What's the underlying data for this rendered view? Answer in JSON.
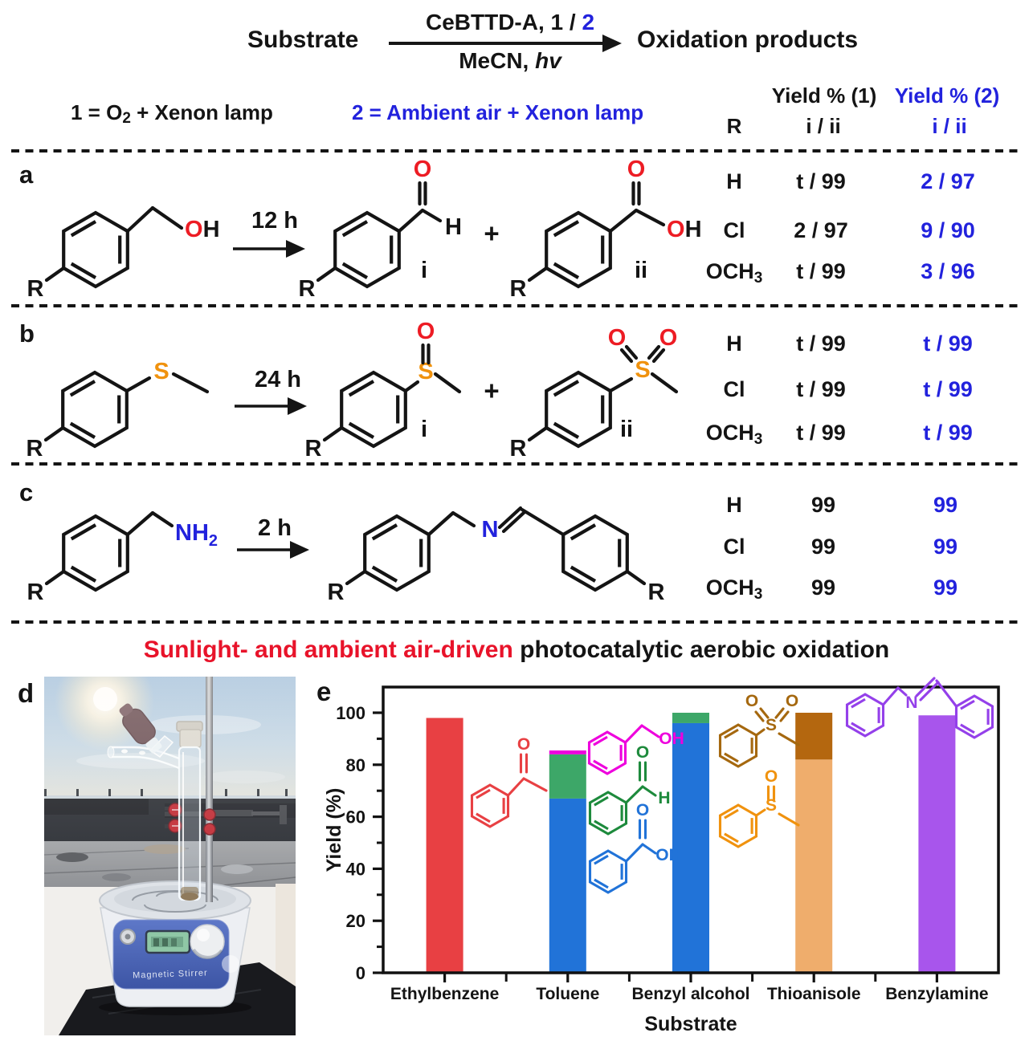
{
  "scheme": {
    "substrate": "Substrate",
    "reagent_black": "CeBTTD-A,  1 / ",
    "reagent_blue": "2",
    "solvent": "MeCN, ",
    "solvent_italic": "hv",
    "products": "Oxidation products"
  },
  "conditions": {
    "cond1_pre": "1 = O",
    "cond1_sub": "2",
    "cond1_post": " + Xenon lamp",
    "cond2": "2 = Ambient air + Xenon lamp"
  },
  "table_header": {
    "yield1": "Yield % (1)",
    "yield2": "Yield % (2)",
    "r": "R",
    "ratio1": "i / ii",
    "ratio2": "i / ii"
  },
  "atoms": {
    "o": "O",
    "h": "H",
    "s": "S",
    "n": "N",
    "nh": "NH",
    "two": "2",
    "r": "R",
    "plus": "+",
    "i": "i",
    "ii": "ii"
  },
  "sections": [
    {
      "label": "a",
      "time": "12 h",
      "rows": [
        {
          "r": "H",
          "r_sub": "",
          "y1": "t / 99",
          "y2": "2 / 97"
        },
        {
          "r": "Cl",
          "r_sub": "",
          "y1": "2 / 97",
          "y2": "9 / 90"
        },
        {
          "r": "OCH",
          "r_sub": "3",
          "y1": "t / 99",
          "y2": "3 / 96"
        }
      ]
    },
    {
      "label": "b",
      "time": "24 h",
      "rows": [
        {
          "r": "H",
          "r_sub": "",
          "y1": "t / 99",
          "y2": "t / 99"
        },
        {
          "r": "Cl",
          "r_sub": "",
          "y1": "t / 99",
          "y2": "t / 99"
        },
        {
          "r": "OCH",
          "r_sub": "3",
          "y1": "t / 99",
          "y2": "t / 99"
        }
      ]
    },
    {
      "label": "c",
      "time": "2 h",
      "rows": [
        {
          "r": "H",
          "r_sub": "",
          "y1": "99",
          "y2": "99"
        },
        {
          "r": "Cl",
          "r_sub": "",
          "y1": "99",
          "y2": "99"
        },
        {
          "r": "OCH",
          "r_sub": "3",
          "y1": "99",
          "y2": "99"
        }
      ]
    }
  ],
  "headline": {
    "red": "Sunlight- and ambient air-driven",
    "black": " photocatalytic aerobic oxidation"
  },
  "panel_d": {
    "label": "d",
    "stirrer_text": "Magnetic Stirrer"
  },
  "panel_e": {
    "label": "e"
  },
  "colors": {
    "accent_blue": "#2222dd",
    "atom_red": "#ed1c24",
    "atom_orange": "#f0920e",
    "headline_red": "#e8132a"
  },
  "chart_data": {
    "type": "bar",
    "stacked": true,
    "xlabel": "Substrate",
    "ylabel": "Yield (%)",
    "ylim": [
      0,
      110
    ],
    "yticks": [
      0,
      20,
      40,
      60,
      80,
      100
    ],
    "categories": [
      "Ethylbenzene",
      "Toluene",
      "Benzyl alcohol",
      "Thioanisole",
      "Benzylamine"
    ],
    "series": [
      {
        "name": "acetophenone",
        "color": "#e84043",
        "values": [
          98,
          0,
          0,
          0,
          0
        ]
      },
      {
        "name": "benzoic acid",
        "color": "#2173d8",
        "values": [
          0,
          67,
          96,
          0,
          0
        ]
      },
      {
        "name": "benzaldehyde",
        "color": "#3da768",
        "values": [
          0,
          17,
          4,
          0,
          0
        ]
      },
      {
        "name": "benzyl alcohol",
        "color": "#ee00dd",
        "values": [
          0,
          1.5,
          0,
          0,
          0
        ]
      },
      {
        "name": "methyl phenyl sulfoxide",
        "color": "#efad6c",
        "values": [
          0,
          0,
          0,
          82,
          0
        ]
      },
      {
        "name": "methyl phenyl sulfone",
        "color": "#b4670f",
        "values": [
          0,
          0,
          0,
          18,
          0
        ]
      },
      {
        "name": "N-benzylidenebenzylamine",
        "color": "#a855ec",
        "values": [
          0,
          0,
          0,
          0,
          99
        ]
      }
    ]
  }
}
